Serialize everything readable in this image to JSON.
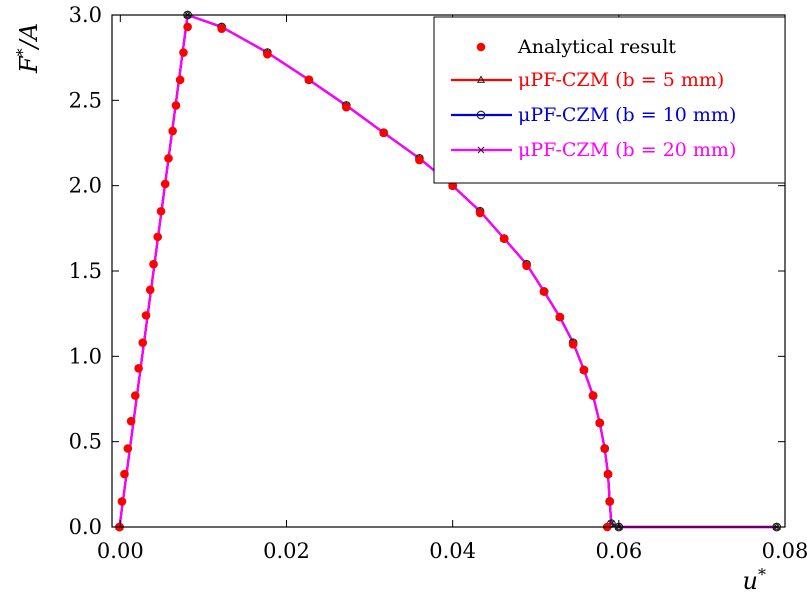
{
  "chart_data": {
    "type": "line",
    "title": "",
    "xlabel": "u*",
    "ylabel": "F*/A",
    "xlim": [
      -0.001,
      0.08
    ],
    "ylim": [
      0.0,
      3.0
    ],
    "x_ticks": [
      0.0,
      0.02,
      0.04,
      0.06,
      0.08
    ],
    "x_tick_labels": [
      "0.00",
      "0.02",
      "0.04",
      "0.06",
      "0.08"
    ],
    "y_ticks": [
      0.0,
      0.5,
      1.0,
      1.5,
      2.0,
      2.5,
      3.0
    ],
    "y_tick_labels": [
      "0.0",
      "0.5",
      "1.0",
      "1.5",
      "2.0",
      "2.5",
      "3.0"
    ],
    "grid": false,
    "legend_position": "top-right",
    "legend": [
      {
        "label": "Analytical result",
        "color": "#ff0000",
        "style": "dot",
        "marker": "filled-circle"
      },
      {
        "label": "μPF-CZM (b =   5 mm)",
        "color": "#ff0000",
        "style": "line",
        "marker": "triangle"
      },
      {
        "label": "μPF-CZM (b = 10 mm)",
        "color": "#0000dd",
        "style": "line",
        "marker": "circle"
      },
      {
        "label": "μPF-CZM (b = 20 mm)",
        "color": "#ff00ff",
        "style": "line",
        "marker": "cross"
      }
    ],
    "analytical_points": [
      {
        "x": -0.0001,
        "y": 0.0
      },
      {
        "x": 0.0002,
        "y": 0.15
      },
      {
        "x": 0.0005,
        "y": 0.31
      },
      {
        "x": 0.0009,
        "y": 0.46
      },
      {
        "x": 0.0013,
        "y": 0.62
      },
      {
        "x": 0.0018,
        "y": 0.77
      },
      {
        "x": 0.0022,
        "y": 0.93
      },
      {
        "x": 0.0027,
        "y": 1.08
      },
      {
        "x": 0.0031,
        "y": 1.24
      },
      {
        "x": 0.0036,
        "y": 1.39
      },
      {
        "x": 0.004,
        "y": 1.54
      },
      {
        "x": 0.0045,
        "y": 1.7
      },
      {
        "x": 0.0049,
        "y": 1.85
      },
      {
        "x": 0.0054,
        "y": 2.01
      },
      {
        "x": 0.0058,
        "y": 2.16
      },
      {
        "x": 0.0063,
        "y": 2.32
      },
      {
        "x": 0.0067,
        "y": 2.47
      },
      {
        "x": 0.0072,
        "y": 2.62
      },
      {
        "x": 0.0076,
        "y": 2.78
      },
      {
        "x": 0.0081,
        "y": 2.93
      },
      {
        "x": 0.0122,
        "y": 2.92
      },
      {
        "x": 0.0177,
        "y": 2.77
      },
      {
        "x": 0.0227,
        "y": 2.62
      },
      {
        "x": 0.0272,
        "y": 2.46
      },
      {
        "x": 0.0317,
        "y": 2.31
      },
      {
        "x": 0.036,
        "y": 2.15
      },
      {
        "x": 0.04,
        "y": 2.0
      },
      {
        "x": 0.0433,
        "y": 1.84
      },
      {
        "x": 0.0462,
        "y": 1.69
      },
      {
        "x": 0.0489,
        "y": 1.53
      },
      {
        "x": 0.051,
        "y": 1.38
      },
      {
        "x": 0.0529,
        "y": 1.23
      },
      {
        "x": 0.0545,
        "y": 1.07
      },
      {
        "x": 0.0558,
        "y": 0.92
      },
      {
        "x": 0.0569,
        "y": 0.77
      },
      {
        "x": 0.0577,
        "y": 0.61
      },
      {
        "x": 0.0583,
        "y": 0.46
      },
      {
        "x": 0.0587,
        "y": 0.31
      },
      {
        "x": 0.0589,
        "y": 0.15
      },
      {
        "x": 0.0586,
        "y": 0.0
      }
    ],
    "series": [
      {
        "name": "μPF-CZM (b =   5 mm)",
        "color": "#ff0000",
        "marker": "triangle",
        "points": [
          {
            "x": -0.0001,
            "y": 0.0
          },
          {
            "x": 0.0081,
            "y": 3.0
          },
          {
            "x": 0.0122,
            "y": 2.93
          },
          {
            "x": 0.0177,
            "y": 2.78
          },
          {
            "x": 0.0227,
            "y": 2.62
          },
          {
            "x": 0.0272,
            "y": 2.47
          },
          {
            "x": 0.0317,
            "y": 2.31
          },
          {
            "x": 0.036,
            "y": 2.16
          },
          {
            "x": 0.04,
            "y": 2.0
          },
          {
            "x": 0.0433,
            "y": 1.85
          },
          {
            "x": 0.0462,
            "y": 1.69
          },
          {
            "x": 0.0489,
            "y": 1.54
          },
          {
            "x": 0.051,
            "y": 1.38
          },
          {
            "x": 0.0529,
            "y": 1.23
          },
          {
            "x": 0.0545,
            "y": 1.08
          },
          {
            "x": 0.0558,
            "y": 0.92
          },
          {
            "x": 0.0569,
            "y": 0.77
          },
          {
            "x": 0.0577,
            "y": 0.61
          },
          {
            "x": 0.0583,
            "y": 0.46
          },
          {
            "x": 0.0587,
            "y": 0.31
          },
          {
            "x": 0.0589,
            "y": 0.15
          },
          {
            "x": 0.0591,
            "y": 0.02
          },
          {
            "x": 0.06,
            "y": 0.0
          },
          {
            "x": 0.079,
            "y": 0.0
          }
        ]
      },
      {
        "name": "μPF-CZM (b = 10 mm)",
        "color": "#0000dd",
        "marker": "circle",
        "points": [
          {
            "x": -0.0001,
            "y": 0.0
          },
          {
            "x": 0.0081,
            "y": 3.0
          },
          {
            "x": 0.0122,
            "y": 2.93
          },
          {
            "x": 0.0177,
            "y": 2.78
          },
          {
            "x": 0.0227,
            "y": 2.62
          },
          {
            "x": 0.0272,
            "y": 2.47
          },
          {
            "x": 0.0317,
            "y": 2.31
          },
          {
            "x": 0.036,
            "y": 2.16
          },
          {
            "x": 0.04,
            "y": 2.0
          },
          {
            "x": 0.0433,
            "y": 1.85
          },
          {
            "x": 0.0462,
            "y": 1.69
          },
          {
            "x": 0.0489,
            "y": 1.54
          },
          {
            "x": 0.051,
            "y": 1.38
          },
          {
            "x": 0.0529,
            "y": 1.23
          },
          {
            "x": 0.0545,
            "y": 1.08
          },
          {
            "x": 0.0558,
            "y": 0.92
          },
          {
            "x": 0.0569,
            "y": 0.77
          },
          {
            "x": 0.0577,
            "y": 0.61
          },
          {
            "x": 0.0583,
            "y": 0.46
          },
          {
            "x": 0.0587,
            "y": 0.31
          },
          {
            "x": 0.0589,
            "y": 0.15
          },
          {
            "x": 0.0591,
            "y": 0.02
          },
          {
            "x": 0.06,
            "y": 0.0
          },
          {
            "x": 0.079,
            "y": 0.0
          }
        ]
      },
      {
        "name": "μPF-CZM (b = 20 mm)",
        "color": "#ff00ff",
        "marker": "cross",
        "points": [
          {
            "x": -0.0001,
            "y": 0.0
          },
          {
            "x": 0.0081,
            "y": 3.0
          },
          {
            "x": 0.0122,
            "y": 2.93
          },
          {
            "x": 0.0177,
            "y": 2.78
          },
          {
            "x": 0.0227,
            "y": 2.62
          },
          {
            "x": 0.0272,
            "y": 2.47
          },
          {
            "x": 0.0317,
            "y": 2.31
          },
          {
            "x": 0.036,
            "y": 2.16
          },
          {
            "x": 0.04,
            "y": 2.0
          },
          {
            "x": 0.0433,
            "y": 1.85
          },
          {
            "x": 0.0462,
            "y": 1.69
          },
          {
            "x": 0.0489,
            "y": 1.54
          },
          {
            "x": 0.051,
            "y": 1.38
          },
          {
            "x": 0.0529,
            "y": 1.23
          },
          {
            "x": 0.0545,
            "y": 1.08
          },
          {
            "x": 0.0558,
            "y": 0.92
          },
          {
            "x": 0.0569,
            "y": 0.77
          },
          {
            "x": 0.0577,
            "y": 0.61
          },
          {
            "x": 0.0583,
            "y": 0.46
          },
          {
            "x": 0.0587,
            "y": 0.31
          },
          {
            "x": 0.0589,
            "y": 0.15
          },
          {
            "x": 0.0591,
            "y": 0.02
          },
          {
            "x": 0.06,
            "y": 0.0
          },
          {
            "x": 0.079,
            "y": 0.0
          }
        ]
      }
    ]
  }
}
